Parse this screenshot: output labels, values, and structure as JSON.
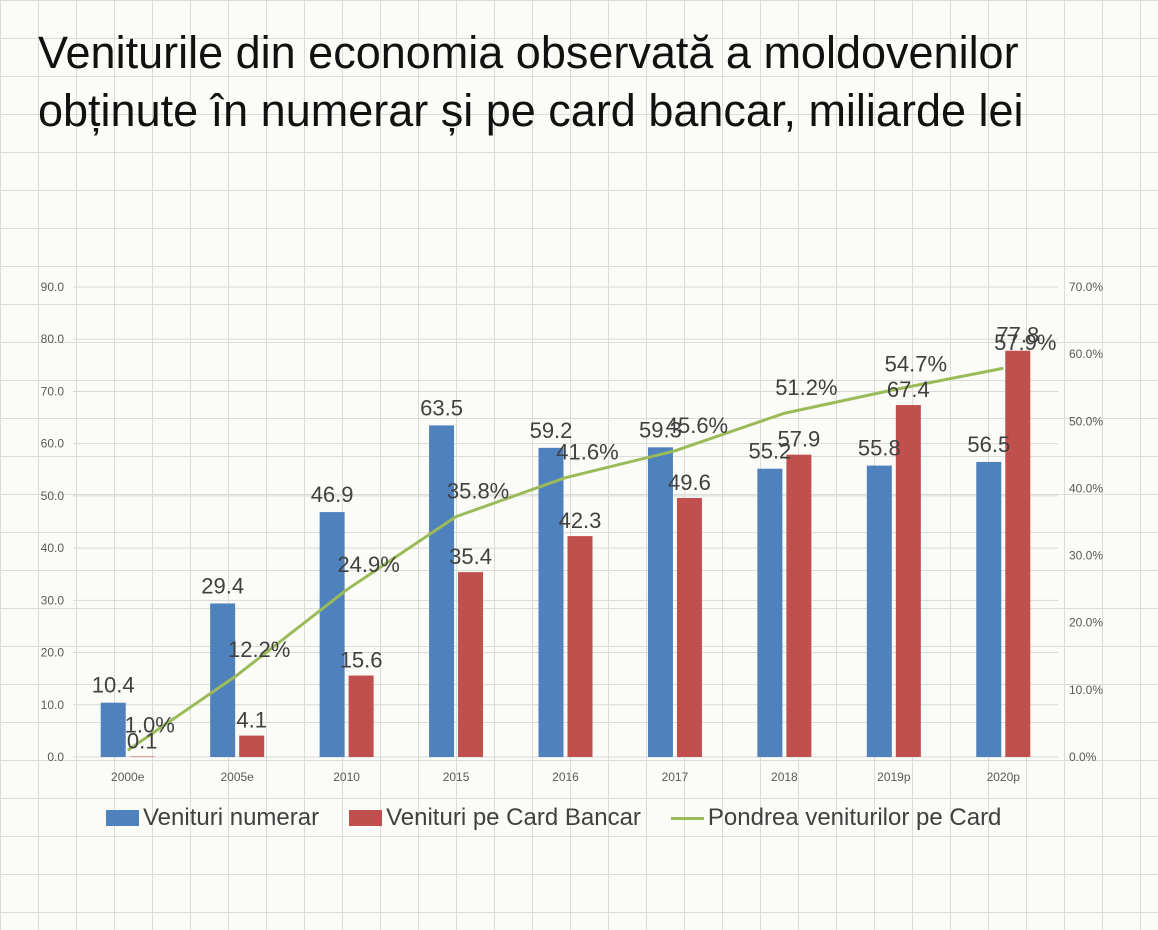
{
  "title": "Veniturile din economia observată a moldovenilor obținute în numerar și pe card bancar, miliarde lei",
  "colors": {
    "numerar": "#4f81bd",
    "card": "#c0504d",
    "share": "#9bbb59"
  },
  "chart_data": {
    "type": "bar",
    "title": "Veniturile din economia observată a moldovenilor obținute în numerar și pe card bancar, miliarde lei",
    "categories": [
      "2000e",
      "2005e",
      "2010",
      "2015",
      "2016",
      "2017",
      "2018",
      "2019p",
      "2020p"
    ],
    "series": [
      {
        "name": "Venituri numerar",
        "type": "bar",
        "axis": "left",
        "values": [
          10.4,
          29.4,
          46.9,
          63.5,
          59.2,
          59.3,
          55.2,
          55.8,
          56.5
        ],
        "labels": [
          "10.4",
          "29.4",
          "46.9",
          "63.5",
          "59.2",
          "59.3",
          "55.2",
          "55.8",
          "56.5"
        ]
      },
      {
        "name": "Venituri pe Card Bancar",
        "type": "bar",
        "axis": "left",
        "values": [
          0.1,
          4.1,
          15.6,
          35.4,
          42.3,
          49.6,
          57.9,
          67.4,
          77.8
        ],
        "labels": [
          "0.1",
          "4.1",
          "15.6",
          "35.4",
          "42.3",
          "49.6",
          "57.9",
          "67.4",
          "77.8"
        ]
      },
      {
        "name": "Pondrea veniturilor pe Card",
        "type": "line",
        "axis": "right",
        "values": [
          1.0,
          12.2,
          24.9,
          35.8,
          41.6,
          45.6,
          51.2,
          54.7,
          57.9
        ],
        "labels": [
          "1.0%",
          "12.2%",
          "24.9%",
          "35.8%",
          "41.6%",
          "45.6%",
          "51.2%",
          "54.7%",
          "57.9%"
        ]
      }
    ],
    "ylim": [
      0,
      90
    ],
    "y_ticks": [
      "0.0",
      "10.0",
      "20.0",
      "30.0",
      "40.0",
      "50.0",
      "60.0",
      "70.0",
      "80.0",
      "90.0"
    ],
    "y2lim": [
      0,
      70
    ],
    "y2_ticks": [
      "0.0%",
      "10.0%",
      "20.0%",
      "30.0%",
      "40.0%",
      "50.0%",
      "60.0%",
      "70.0%"
    ],
    "grid": true,
    "legend": "bottom"
  }
}
